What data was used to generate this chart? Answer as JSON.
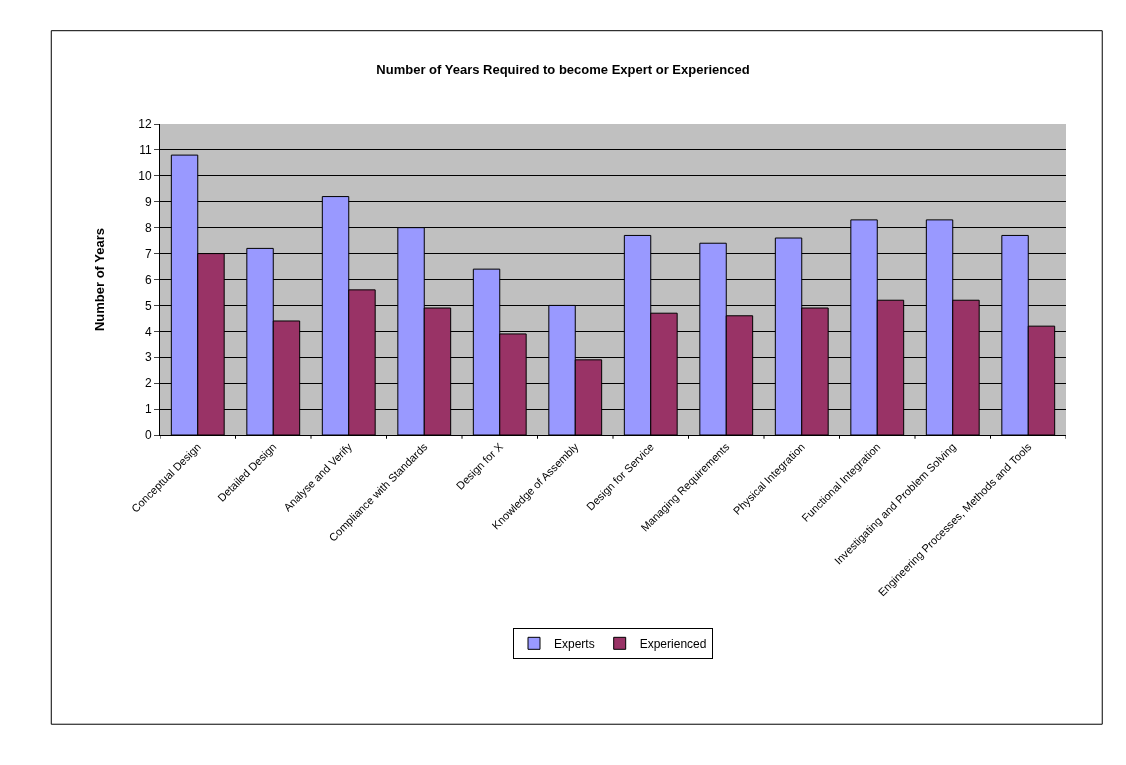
{
  "chart_data": {
    "type": "bar",
    "title": "Number of Years Required to become Expert or Experienced",
    "ylabel": "Number of Years",
    "categories": [
      "Conceptual Design",
      "Detailed Design",
      "Analyse and Verify",
      "Compliance with Standards",
      "Design for X",
      "Knowledge of Assembly",
      "Design for Service",
      "Managing Requirements",
      "Physical Integration",
      "Functional Integration",
      "Investigating and Problem Solving",
      "Engineering Processes, Methods and Tools"
    ],
    "series": [
      {
        "name": "Experts",
        "color": "#9999ff",
        "values": [
          10.8,
          7.2,
          9.2,
          8.0,
          6.4,
          5.0,
          7.7,
          7.4,
          7.6,
          8.3,
          8.3,
          7.7
        ]
      },
      {
        "name": "Experienced",
        "color": "#993366",
        "values": [
          7.0,
          4.4,
          5.6,
          4.9,
          3.9,
          2.9,
          4.7,
          4.6,
          4.9,
          5.2,
          5.2,
          4.2
        ]
      }
    ],
    "ylim": [
      0,
      12
    ],
    "yticks": [
      0,
      1,
      2,
      3,
      4,
      5,
      6,
      7,
      8,
      9,
      10,
      11,
      12
    ],
    "grid": "y",
    "legend": "bottom"
  }
}
